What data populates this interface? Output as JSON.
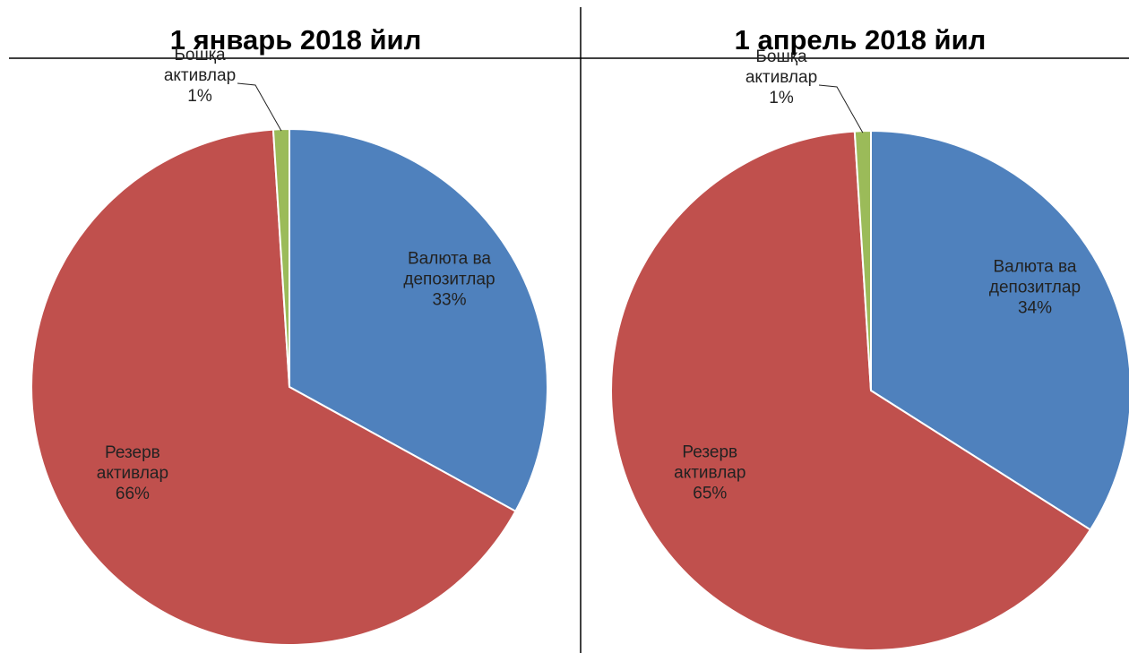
{
  "chart_data": [
    {
      "type": "pie",
      "title": "1 январь 2018 йил",
      "categories": [
        "Валюта ва депозитлар",
        "Резерв активлар",
        "Бошқа активлар"
      ],
      "values": [
        33,
        66,
        1
      ],
      "value_labels": [
        "33%",
        "66%",
        "1%"
      ],
      "colors": [
        "#4f81bd",
        "#c0504d",
        "#9bbb59"
      ]
    },
    {
      "type": "pie",
      "title": "1 апрель 2018 йил",
      "categories": [
        "Валюта ва депозитлар",
        "Резерв активлар",
        "Бошқа активлар"
      ],
      "values": [
        34,
        65,
        1
      ],
      "value_labels": [
        "34%",
        "65%",
        "1%"
      ],
      "colors": [
        "#4f81bd",
        "#c0504d",
        "#9bbb59"
      ]
    }
  ]
}
